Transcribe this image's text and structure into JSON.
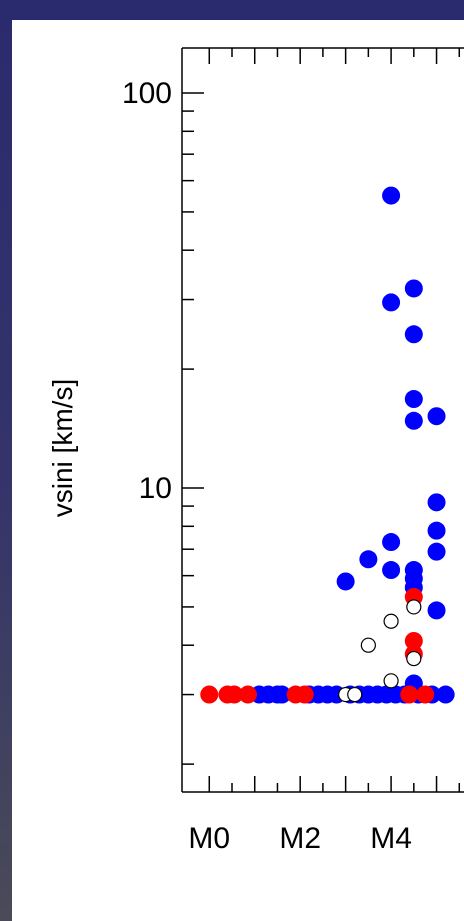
{
  "chart_data": {
    "type": "scatter",
    "title": "",
    "ylabel": "vsini [km/s]",
    "xlabel": "",
    "y_scale": "log",
    "ylim": [
      1.7,
      130
    ],
    "xlim": [
      -0.6,
      6.0
    ],
    "x_ticks": [
      {
        "value": 0,
        "label": "M0"
      },
      {
        "value": 2,
        "label": "M2"
      },
      {
        "value": 4,
        "label": "M4"
      }
    ],
    "y_ticks": [
      {
        "value": 10,
        "label": "10"
      },
      {
        "value": 100,
        "label": "100"
      }
    ],
    "series": [
      {
        "color": "#0000ff",
        "marker": "filled-circle",
        "points": [
          {
            "x": 4.0,
            "y": 55
          },
          {
            "x": 4.5,
            "y": 32
          },
          {
            "x": 4.0,
            "y": 29.5
          },
          {
            "x": 4.5,
            "y": 24.5
          },
          {
            "x": 4.5,
            "y": 16.8
          },
          {
            "x": 4.5,
            "y": 14.8
          },
          {
            "x": 5.0,
            "y": 15.2
          },
          {
            "x": 5.0,
            "y": 9.2
          },
          {
            "x": 5.0,
            "y": 7.8
          },
          {
            "x": 5.0,
            "y": 6.9
          },
          {
            "x": 4.0,
            "y": 7.3
          },
          {
            "x": 4.0,
            "y": 6.2
          },
          {
            "x": 3.5,
            "y": 6.6
          },
          {
            "x": 3.0,
            "y": 5.8
          },
          {
            "x": 4.5,
            "y": 6.2
          },
          {
            "x": 4.5,
            "y": 5.9
          },
          {
            "x": 4.5,
            "y": 5.6
          },
          {
            "x": 5.0,
            "y": 4.9
          },
          {
            "x": 4.5,
            "y": 3.2
          },
          {
            "x": 1.1,
            "y": 3.0
          },
          {
            "x": 1.3,
            "y": 3.0
          },
          {
            "x": 1.5,
            "y": 3.0
          },
          {
            "x": 1.6,
            "y": 3.0
          },
          {
            "x": 2.2,
            "y": 3.0
          },
          {
            "x": 2.4,
            "y": 3.0
          },
          {
            "x": 2.6,
            "y": 3.0
          },
          {
            "x": 2.8,
            "y": 3.0
          },
          {
            "x": 3.1,
            "y": 3.0
          },
          {
            "x": 3.3,
            "y": 3.0
          },
          {
            "x": 3.5,
            "y": 3.0
          },
          {
            "x": 3.7,
            "y": 3.0
          },
          {
            "x": 3.9,
            "y": 3.0
          },
          {
            "x": 4.1,
            "y": 3.0
          },
          {
            "x": 4.3,
            "y": 3.0
          },
          {
            "x": 4.6,
            "y": 3.0
          },
          {
            "x": 4.9,
            "y": 3.0
          },
          {
            "x": 5.2,
            "y": 3.0
          }
        ]
      },
      {
        "color": "#ff0000",
        "marker": "filled-circle",
        "points": [
          {
            "x": 4.5,
            "y": 5.3
          },
          {
            "x": 4.5,
            "y": 4.1
          },
          {
            "x": 4.5,
            "y": 3.8
          },
          {
            "x": 0.0,
            "y": 3.0
          },
          {
            "x": 0.4,
            "y": 3.0
          },
          {
            "x": 0.55,
            "y": 3.0
          },
          {
            "x": 0.85,
            "y": 3.0
          },
          {
            "x": 1.9,
            "y": 3.0
          },
          {
            "x": 2.1,
            "y": 3.0
          },
          {
            "x": 4.4,
            "y": 3.0
          },
          {
            "x": 4.75,
            "y": 3.0
          }
        ]
      },
      {
        "color": "#000000",
        "marker": "open-circle",
        "points": [
          {
            "x": 4.0,
            "y": 4.6
          },
          {
            "x": 4.5,
            "y": 5.0
          },
          {
            "x": 3.5,
            "y": 4.0
          },
          {
            "x": 4.5,
            "y": 3.7
          },
          {
            "x": 4.0,
            "y": 3.25
          },
          {
            "x": 3.0,
            "y": 3.0
          },
          {
            "x": 3.2,
            "y": 3.0
          }
        ]
      }
    ]
  }
}
